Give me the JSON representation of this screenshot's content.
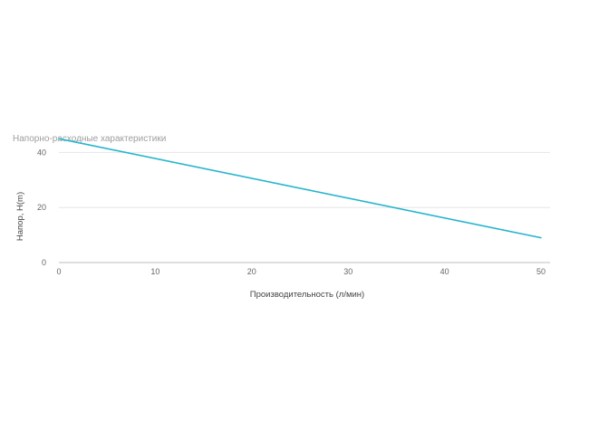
{
  "chart_data": {
    "type": "line",
    "title": "Напорно-расходные характеристики",
    "xlabel": "Производительность (л/мин)",
    "ylabel": "Напор, H(m)",
    "xlim": [
      0,
      50
    ],
    "ylim": [
      0,
      50
    ],
    "x_ticks": [
      "0",
      "10",
      "20",
      "30",
      "40",
      "50"
    ],
    "y_ticks": [
      "0",
      "20",
      "40"
    ],
    "grid": true,
    "legend": "none",
    "series": [
      {
        "x": [
          0,
          50
        ],
        "y": [
          45,
          9
        ],
        "color": "#26b5cc"
      }
    ]
  }
}
